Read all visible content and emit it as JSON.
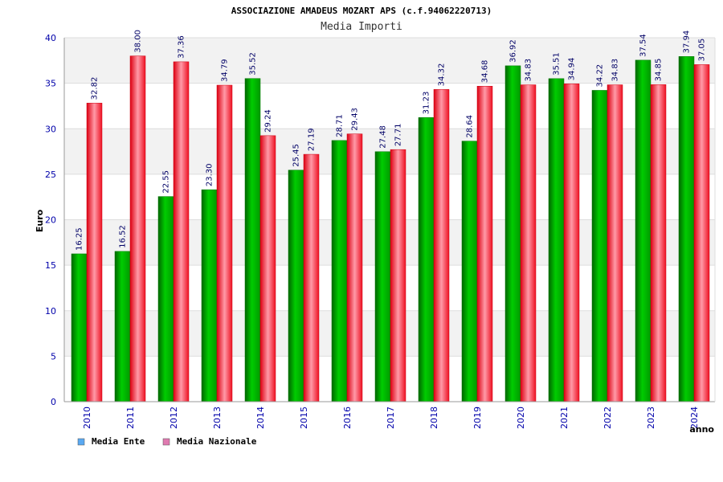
{
  "chart_data": {
    "type": "bar",
    "title": "ASSOCIAZIONE AMADEUS MOZART APS (c.f.94062220713)",
    "subtitle": "Media Importi",
    "xlabel": "anno",
    "ylabel": "Euro",
    "ylim": [
      0,
      40
    ],
    "yticks": [
      0,
      5,
      10,
      15,
      20,
      25,
      30,
      35,
      40
    ],
    "grid": true,
    "legend_position": "bottom-left",
    "categories": [
      "2010",
      "2011",
      "2012",
      "2013",
      "2014",
      "2015",
      "2016",
      "2017",
      "2018",
      "2019",
      "2020",
      "2021",
      "2022",
      "2023",
      "2024"
    ],
    "series": [
      {
        "name": "Media Ente",
        "color": "#00bb00",
        "legend_color": "#5aa9f2",
        "values": [
          16.25,
          16.52,
          22.55,
          23.3,
          35.52,
          25.45,
          28.71,
          27.48,
          31.23,
          28.64,
          36.92,
          35.51,
          34.22,
          37.54,
          37.94
        ],
        "labels": [
          "16.25",
          "16.52",
          "22.55",
          "23.30",
          "35.52",
          "25.45",
          "28.71",
          "27.48",
          "31.23",
          "28.64",
          "36.92",
          "35.51",
          "34.22",
          "37.54",
          "37.94"
        ]
      },
      {
        "name": "Media Nazionale",
        "color": "#ee2233",
        "legend_color": "#e07ab0",
        "values": [
          32.82,
          38.0,
          37.36,
          34.79,
          29.24,
          27.19,
          29.43,
          27.71,
          34.32,
          34.68,
          34.83,
          34.94,
          34.83,
          34.85,
          37.05
        ],
        "labels": [
          "32.82",
          "38.00",
          "37.36",
          "34.79",
          "29.24",
          "27.19",
          "29.43",
          "27.71",
          "34.32",
          "34.68",
          "34.83",
          "34.94",
          "34.83",
          "34.85",
          "37.05"
        ]
      }
    ]
  }
}
